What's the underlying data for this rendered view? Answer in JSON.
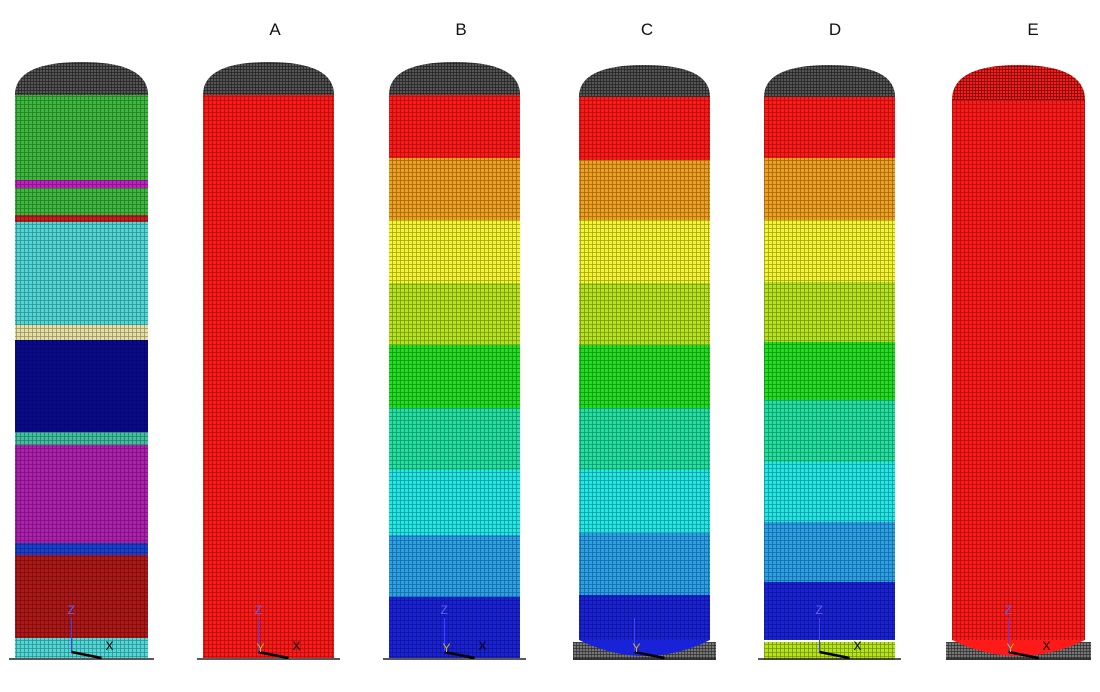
{
  "panel_labels": [
    "A",
    "B",
    "C",
    "D",
    "E"
  ],
  "triads": [
    [
      "Z",
      "X"
    ],
    [
      "Z",
      "Y",
      "X"
    ],
    [
      "Z",
      "Y",
      "X"
    ],
    [
      "Y"
    ],
    [
      "Z",
      "X"
    ],
    [
      "Z",
      "Y",
      "X"
    ]
  ]
}
